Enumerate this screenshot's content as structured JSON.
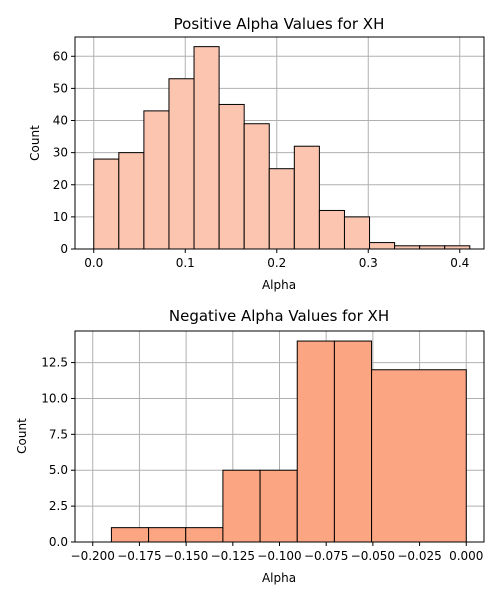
{
  "chart_data": [
    {
      "type": "bar",
      "title": "Positive Alpha Values for XH",
      "xlabel": "Alpha",
      "ylabel": "Count",
      "color": "#fcc5b0",
      "xlim": [
        -0.0205,
        0.4265
      ],
      "ylim": [
        0,
        66
      ],
      "grid": true,
      "bins": [
        {
          "x0": 0.0,
          "x1": 0.0274,
          "count": 28
        },
        {
          "x0": 0.0274,
          "x1": 0.0548,
          "count": 30
        },
        {
          "x0": 0.0548,
          "x1": 0.0822,
          "count": 43
        },
        {
          "x0": 0.0822,
          "x1": 0.1096,
          "count": 53
        },
        {
          "x0": 0.1096,
          "x1": 0.137,
          "count": 63
        },
        {
          "x0": 0.137,
          "x1": 0.1644,
          "count": 45
        },
        {
          "x0": 0.1644,
          "x1": 0.1918,
          "count": 39
        },
        {
          "x0": 0.1918,
          "x1": 0.2192,
          "count": 25
        },
        {
          "x0": 0.2192,
          "x1": 0.2466,
          "count": 32
        },
        {
          "x0": 0.2466,
          "x1": 0.274,
          "count": 12
        },
        {
          "x0": 0.274,
          "x1": 0.3014,
          "count": 10
        },
        {
          "x0": 0.3014,
          "x1": 0.3288,
          "count": 2
        },
        {
          "x0": 0.3288,
          "x1": 0.3562,
          "count": 1
        },
        {
          "x0": 0.3562,
          "x1": 0.3836,
          "count": 1
        },
        {
          "x0": 0.3836,
          "x1": 0.411,
          "count": 1
        }
      ],
      "xticks": [
        0.0,
        0.1,
        0.2,
        0.3,
        0.4
      ],
      "xtick_labels": [
        "0.0",
        "0.1",
        "0.2",
        "0.3",
        "0.4"
      ],
      "yticks": [
        0,
        10,
        20,
        30,
        40,
        50,
        60
      ],
      "ytick_labels": [
        "0",
        "10",
        "20",
        "30",
        "40",
        "50",
        "60"
      ]
    },
    {
      "type": "bar",
      "title": "Negative Alpha Values for XH",
      "xlabel": "Alpha",
      "ylabel": "Count",
      "color": "#fba582",
      "xlim": [
        -0.2095,
        0.0095
      ],
      "ylim": [
        0,
        14.7
      ],
      "grid": true,
      "bins": [
        {
          "x0": -0.19,
          "x1": -0.1701,
          "count": 1
        },
        {
          "x0": -0.1701,
          "x1": -0.1502,
          "count": 1
        },
        {
          "x0": -0.1502,
          "x1": -0.1303,
          "count": 1
        },
        {
          "x0": -0.1303,
          "x1": -0.1104,
          "count": 5
        },
        {
          "x0": -0.1104,
          "x1": -0.0905,
          "count": 5
        },
        {
          "x0": -0.0905,
          "x1": -0.0706,
          "count": 14
        },
        {
          "x0": -0.0706,
          "x1": -0.0507,
          "count": 14
        },
        {
          "x0": -0.0507,
          "x1": 0.0,
          "count": 12
        }
      ],
      "xticks": [
        -0.2,
        -0.175,
        -0.15,
        -0.125,
        -0.1,
        -0.075,
        -0.05,
        -0.025,
        0.0
      ],
      "xtick_labels": [
        "−0.200",
        "−0.175",
        "−0.150",
        "−0.125",
        "−0.100",
        "−0.075",
        "−0.050",
        "−0.025",
        "0.000"
      ],
      "yticks": [
        0,
        2.5,
        5,
        7.5,
        10,
        12.5
      ],
      "ytick_labels": [
        "0.0",
        "2.5",
        "5.0",
        "7.5",
        "10.0",
        "12.5"
      ]
    }
  ]
}
